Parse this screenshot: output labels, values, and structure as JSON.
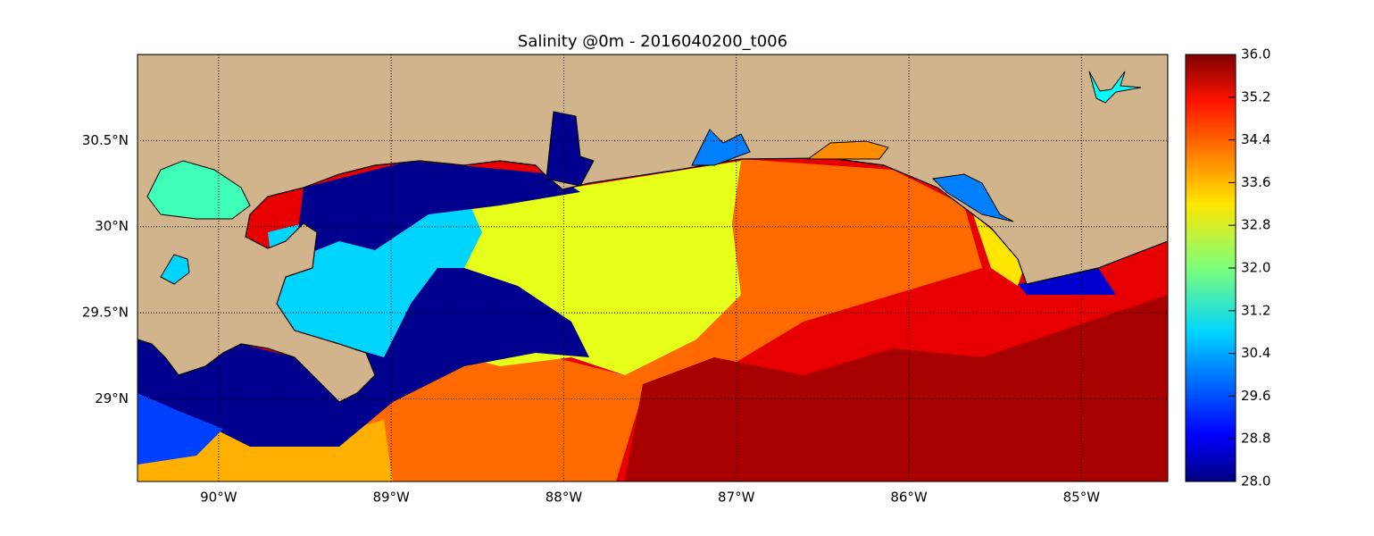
{
  "chart_data": {
    "type": "map",
    "title": "Salinity @0m - 2016040200_t006",
    "xlim": [
      -90.47,
      -84.5
    ],
    "ylim": [
      28.52,
      31.0
    ],
    "xticks": [
      {
        "value": -90,
        "label": "90°W"
      },
      {
        "value": -89,
        "label": "89°W"
      },
      {
        "value": -88,
        "label": "88°W"
      },
      {
        "value": -87,
        "label": "87°W"
      },
      {
        "value": -86,
        "label": "86°W"
      },
      {
        "value": -85,
        "label": "85°W"
      }
    ],
    "yticks": [
      {
        "value": 29,
        "label": "29°N"
      },
      {
        "value": 29.5,
        "label": "29.5°N"
      },
      {
        "value": 30,
        "label": "30°N"
      },
      {
        "value": 30.5,
        "label": "30.5°N"
      }
    ],
    "grid": true,
    "colorbar": {
      "lim": [
        28,
        36
      ],
      "ticks": [
        {
          "value": 28,
          "label": "28.0"
        },
        {
          "value": 28.8,
          "label": "28.8"
        },
        {
          "value": 29.6,
          "label": "29.6"
        },
        {
          "value": 30.4,
          "label": "30.4"
        },
        {
          "value": 31.2,
          "label": "31.2"
        },
        {
          "value": 32,
          "label": "32.0"
        },
        {
          "value": 32.8,
          "label": "32.8"
        },
        {
          "value": 33.6,
          "label": "33.6"
        },
        {
          "value": 34.4,
          "label": "34.4"
        },
        {
          "value": 35.2,
          "label": "35.2"
        },
        {
          "value": 36,
          "label": "36.0"
        }
      ]
    }
  }
}
